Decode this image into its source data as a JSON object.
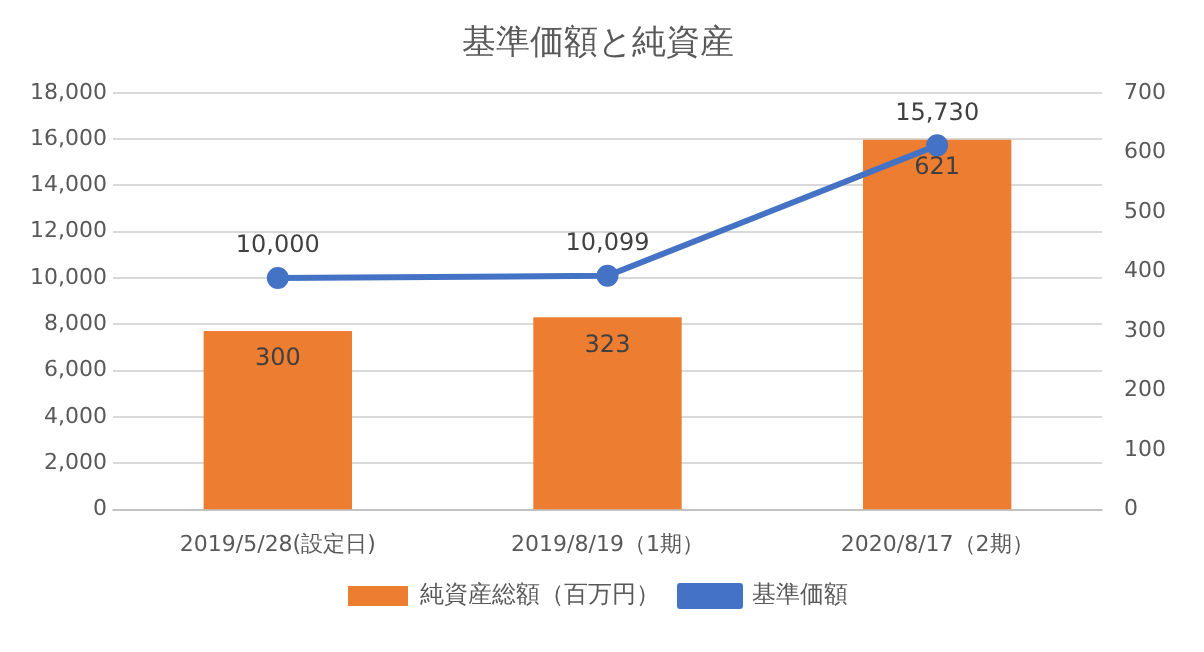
{
  "chart_data": {
    "type": "bar",
    "title": "基準価額と純資産",
    "categories": [
      "2019/5/28(設定日)",
      "2019/8/19（1期）",
      "2020/8/17（2期）"
    ],
    "series": [
      {
        "name": "純資産総額（百万円）",
        "axis": "y2",
        "color": "#ed7d31",
        "values": [
          300,
          323,
          621
        ],
        "value_labels": [
          "300",
          "323",
          "621"
        ]
      },
      {
        "name": "基準価額",
        "type": "line",
        "axis": "y",
        "color": "#4472c4",
        "values": [
          10000,
          10099,
          15730
        ],
        "value_labels": [
          "10,000",
          "10,099",
          "15,730"
        ],
        "marker": "circle",
        "line_style": "solid"
      }
    ],
    "ylim": [
      0,
      18000
    ],
    "yticks": [
      {
        "value": 0,
        "label": "0"
      },
      {
        "value": 2000,
        "label": "2,000"
      },
      {
        "value": 4000,
        "label": "4,000"
      },
      {
        "value": 6000,
        "label": "6,000"
      },
      {
        "value": 8000,
        "label": "8,000"
      },
      {
        "value": 10000,
        "label": "10,000"
      },
      {
        "value": 12000,
        "label": "12,000"
      },
      {
        "value": 14000,
        "label": "14,000"
      },
      {
        "value": 16000,
        "label": "16,000"
      },
      {
        "value": 18000,
        "label": "18,000"
      }
    ],
    "y2lim": [
      0,
      700
    ],
    "y2ticks": [
      0,
      100,
      200,
      300,
      400,
      500,
      600,
      700
    ],
    "grid": "y",
    "legend": "bottom"
  }
}
